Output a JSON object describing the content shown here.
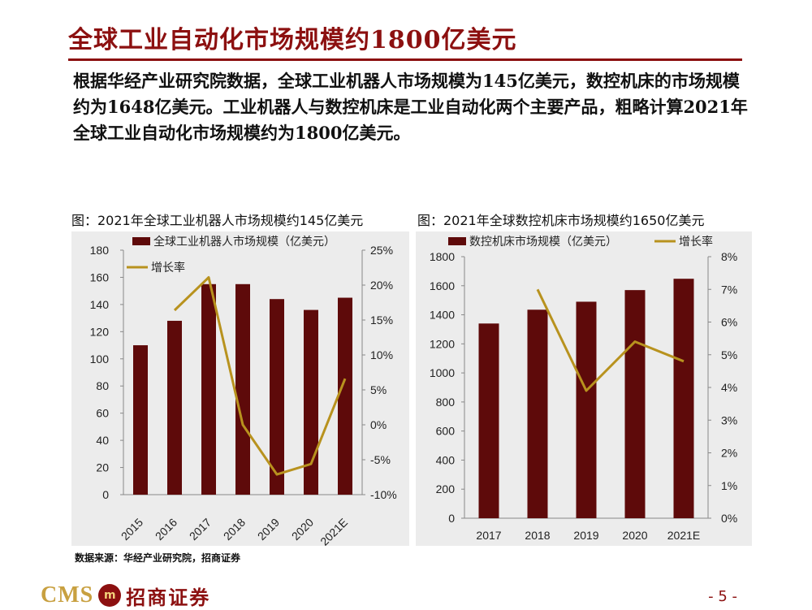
{
  "slide": {
    "title": "全球工业自动化市场规模约1800亿美元",
    "intro": "根据华经产业研究院数据，全球工业机器人市场规模为145亿美元，数控机床的市场规模约为1648亿美元。工业机器人与数控机床是工业自动化两个主要产品，粗略计算2021年全球工业自动化市场规模约为1800亿美元。",
    "source": "数据来源：华经产业研究院，招商证券",
    "page": "- 5 -",
    "logo": {
      "cms": "CMS",
      "mark": "m",
      "name": "招商证券"
    }
  },
  "colors": {
    "bar": "#5e0a0a",
    "line": "#b8921e",
    "accent": "#8c1010",
    "panel": "#ececec"
  },
  "chart_data": [
    {
      "type": "bar",
      "title": "图：2021年全球工业机器人市场规模约145亿美元",
      "categories": [
        "2015",
        "2016",
        "2017",
        "2018",
        "2019",
        "2020",
        "2021E"
      ],
      "series": [
        {
          "name": "全球工业机器人市场规模（亿美元）",
          "type": "bar",
          "axis": "left",
          "values": [
            110,
            128,
            155,
            155,
            144,
            136,
            145
          ]
        },
        {
          "name": "增长率",
          "type": "line",
          "axis": "right",
          "values": [
            null,
            16.4,
            21.1,
            0.0,
            -7.1,
            -5.6,
            6.6
          ]
        }
      ],
      "yleft": {
        "min": 0,
        "max": 180,
        "step": 20,
        "ticks": [
          "0",
          "20",
          "40",
          "60",
          "80",
          "100",
          "120",
          "140",
          "160",
          "180"
        ]
      },
      "yright": {
        "min": -10,
        "max": 25,
        "step": 5,
        "ticks": [
          "-10%",
          "-5%",
          "0%",
          "5%",
          "10%",
          "15%",
          "20%",
          "25%"
        ]
      },
      "legend": "top"
    },
    {
      "type": "bar",
      "title": "图：2021年全球数控机床市场规模约1650亿美元",
      "categories": [
        "2017",
        "2018",
        "2019",
        "2020",
        "2021E"
      ],
      "series": [
        {
          "name": "数控机床市场规模（亿美元）",
          "type": "bar",
          "axis": "left",
          "values": [
            1340,
            1435,
            1490,
            1570,
            1648
          ]
        },
        {
          "name": "增长率",
          "type": "line",
          "axis": "right",
          "values": [
            null,
            7.0,
            3.9,
            5.4,
            4.8
          ]
        }
      ],
      "yleft": {
        "min": 0,
        "max": 1800,
        "step": 200,
        "ticks": [
          "0",
          "200",
          "400",
          "600",
          "800",
          "1000",
          "1200",
          "1400",
          "1600",
          "1800"
        ]
      },
      "yright": {
        "min": 0,
        "max": 8,
        "step": 1,
        "ticks": [
          "0%",
          "1%",
          "2%",
          "3%",
          "4%",
          "5%",
          "6%",
          "7%",
          "8%"
        ]
      },
      "legend": "top"
    }
  ]
}
